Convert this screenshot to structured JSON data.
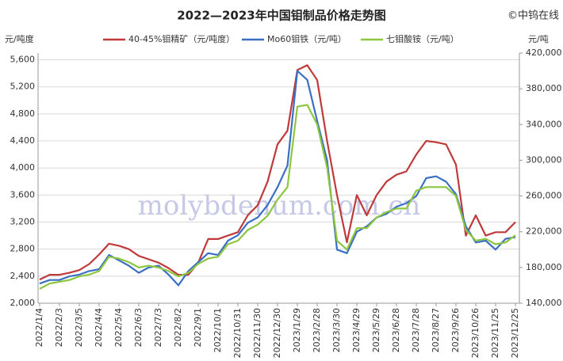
{
  "chart_data": {
    "type": "line",
    "title": "2022—2023年中国钼制品价格走势图",
    "annotation": "©中钨在线",
    "watermark": "molybdenum.com.cn",
    "y_label": "元/吨度",
    "y2_label": "元/吨",
    "categories": [
      "2022/1/4",
      null,
      "2022/2/3",
      null,
      "2022/3/5",
      null,
      "2022/4/4",
      null,
      "2022/5/4",
      null,
      "2022/6/3",
      null,
      "2022/7/3",
      null,
      "2022/8/2",
      null,
      "2022/9/1",
      null,
      "2022/10/1",
      null,
      "2022/10/31",
      null,
      "2022/11/30",
      null,
      "2022/12/30",
      null,
      "2023/1/29",
      null,
      "2023/2/28",
      null,
      "2023/3/30",
      null,
      "2023/4/29",
      null,
      "2023/5/29",
      null,
      "2023/6/28",
      null,
      "2023/7/28",
      null,
      "2023/8/27",
      null,
      "2023/9/26",
      null,
      "2023/10/26",
      null,
      "2023/11/25",
      null,
      "2023/12/25"
    ],
    "series": [
      {
        "name": "40-45%钼精矿（元/吨度）",
        "color": "#c0393b",
        "values": [
          2350,
          2420,
          2420,
          2450,
          2490,
          2580,
          2720,
          2880,
          2850,
          2800,
          2700,
          2650,
          2600,
          2520,
          2420,
          2420,
          2600,
          2950,
          2950,
          3000,
          3050,
          3300,
          3450,
          3800,
          4350,
          4550,
          5450,
          5520,
          5300,
          4400,
          3600,
          2900,
          3600,
          3300,
          3600,
          3800,
          3900,
          3950,
          4200,
          4400,
          4380,
          4350,
          4050,
          3000,
          3300,
          3000,
          3050,
          3050,
          3200
        ]
      },
      {
        "name": "Mo60钼铁（元/吨）",
        "color": "#3a6fc4",
        "axis": "y2",
        "values": [
          162000,
          166000,
          166000,
          170000,
          172000,
          176000,
          178000,
          194000,
          188000,
          182000,
          174000,
          180000,
          182000,
          172000,
          160000,
          176000,
          186000,
          196000,
          194000,
          210000,
          216000,
          230000,
          236000,
          250000,
          270000,
          294000,
          400000,
          390000,
          344000,
          300000,
          200000,
          196000,
          220000,
          226000,
          236000,
          240000,
          248000,
          252000,
          260000,
          280000,
          282000,
          276000,
          262000,
          226000,
          208000,
          210000,
          200000,
          212000,
          214000
        ]
      },
      {
        "name": "七钼酸铵（元/吨）",
        "color": "#8dc63f",
        "axis": "y2",
        "values": [
          156000,
          162000,
          164000,
          166000,
          170000,
          172000,
          176000,
          192000,
          190000,
          186000,
          180000,
          182000,
          180000,
          176000,
          170000,
          174000,
          184000,
          190000,
          192000,
          206000,
          210000,
          222000,
          228000,
          238000,
          256000,
          270000,
          360000,
          362000,
          340000,
          292000,
          210000,
          200000,
          224000,
          224000,
          236000,
          242000,
          246000,
          246000,
          266000,
          270000,
          270000,
          270000,
          260000,
          222000,
          210000,
          212000,
          206000,
          208000,
          216000
        ]
      }
    ],
    "ylim": [
      2000,
      5700
    ],
    "yticks": [
      {
        "value": 2000,
        "label": "2,000"
      },
      {
        "value": 2400,
        "label": "2,400"
      },
      {
        "value": 2800,
        "label": "2,800"
      },
      {
        "value": 3200,
        "label": "3,200"
      },
      {
        "value": 3600,
        "label": "3,600"
      },
      {
        "value": 4000,
        "label": "4,000"
      },
      {
        "value": 4400,
        "label": "4,400"
      },
      {
        "value": 4800,
        "label": "4,800"
      },
      {
        "value": 5200,
        "label": "5,200"
      },
      {
        "value": 5600,
        "label": "5,600"
      }
    ],
    "y2lim": [
      140000,
      420000
    ],
    "y2ticks": [
      {
        "value": 140000,
        "label": "140,000"
      },
      {
        "value": 180000,
        "label": "180,000"
      },
      {
        "value": 220000,
        "label": "220,000"
      },
      {
        "value": 260000,
        "label": "260,000"
      },
      {
        "value": 300000,
        "label": "300,000"
      },
      {
        "value": 340000,
        "label": "340,000"
      },
      {
        "value": 380000,
        "label": "380,000"
      },
      {
        "value": 420000,
        "label": "420,000"
      }
    ],
    "grid": true
  }
}
